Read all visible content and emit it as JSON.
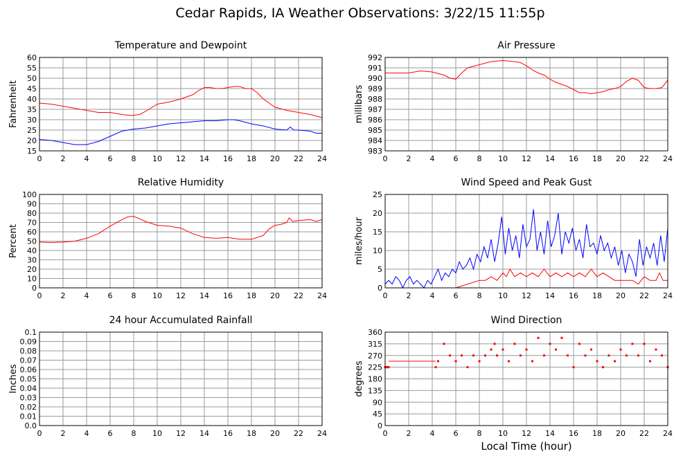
{
  "title": "Cedar Rapids, IA Weather Observations: 3/22/15 11:55p",
  "xlabel": "Local Time (hour)",
  "colors": {
    "red": "#ff0000",
    "blue": "#0000ff",
    "grid": "#999999"
  },
  "chart_data": [
    {
      "id": "temp",
      "type": "line",
      "title": "Temperature and Dewpoint",
      "ylabel": "Fahrenheit",
      "xlim": [
        0,
        24
      ],
      "ylim": [
        15,
        60
      ],
      "xticks": [
        0,
        2,
        4,
        6,
        8,
        10,
        12,
        14,
        16,
        18,
        20,
        22,
        24
      ],
      "yticks": [
        15,
        20,
        25,
        30,
        35,
        40,
        45,
        50,
        55,
        60
      ],
      "series": [
        {
          "color": "#ff0000",
          "x": [
            0,
            1,
            2,
            3,
            4,
            5,
            6,
            7,
            7.8,
            8.5,
            9,
            10,
            11,
            12,
            13,
            13.5,
            14,
            14.5,
            15,
            15.5,
            16,
            16.5,
            17,
            17.5,
            18,
            18.5,
            19,
            19.5,
            20,
            21,
            22,
            23,
            24
          ],
          "y": [
            38,
            37.5,
            36.5,
            35.5,
            34.5,
            33.5,
            33.5,
            32.5,
            32,
            32.5,
            34,
            37.5,
            38.5,
            40,
            42,
            44,
            45.5,
            45.5,
            45,
            45,
            45.5,
            46,
            46,
            45,
            45,
            43,
            40,
            38,
            36,
            34.5,
            33.5,
            32.5,
            31
          ]
        },
        {
          "color": "#0000ff",
          "x": [
            0,
            1,
            2,
            3,
            4,
            5,
            6,
            7,
            8,
            9,
            10,
            11,
            12,
            13,
            14,
            15,
            16,
            16.5,
            17,
            18,
            19,
            20,
            21,
            21.3,
            21.6,
            22,
            23,
            23.5,
            24
          ],
          "y": [
            20.5,
            20,
            19,
            18,
            18,
            19.5,
            22,
            24.5,
            25.5,
            26,
            27,
            28,
            28.5,
            29,
            29.5,
            29.5,
            30,
            30,
            29.5,
            28,
            27,
            25.5,
            25,
            26.5,
            25,
            25,
            24.5,
            23.5,
            23.5
          ]
        }
      ]
    },
    {
      "id": "pres",
      "type": "line",
      "title": "Air Pressure",
      "ylabel": "millibars",
      "xlim": [
        0,
        24
      ],
      "ylim": [
        983,
        992
      ],
      "xticks": [
        0,
        2,
        4,
        6,
        8,
        10,
        12,
        14,
        16,
        18,
        20,
        22,
        24
      ],
      "yticks": [
        983,
        984,
        985,
        986,
        987,
        988,
        989,
        990,
        991,
        992
      ],
      "series": [
        {
          "color": "#ff0000",
          "x": [
            0,
            1,
            2,
            3,
            4,
            5,
            5.5,
            6,
            6.5,
            7,
            8,
            9,
            10,
            11,
            11.5,
            12,
            12.5,
            13,
            13.5,
            14,
            14.5,
            15,
            15.5,
            16,
            16.5,
            17,
            17.5,
            18,
            18.5,
            19,
            19.5,
            20,
            20.5,
            21,
            21.5,
            22,
            22.5,
            23,
            23.5,
            24
          ],
          "y": [
            990.5,
            990.5,
            990.5,
            990.7,
            990.6,
            990.3,
            990,
            989.9,
            990.5,
            991,
            991.3,
            991.6,
            991.7,
            991.6,
            991.5,
            991.2,
            990.8,
            990.5,
            990.3,
            989.9,
            989.6,
            989.4,
            989.2,
            988.9,
            988.6,
            988.6,
            988.5,
            988.6,
            988.7,
            988.9,
            989,
            989.2,
            989.7,
            990,
            989.8,
            989.1,
            989,
            989,
            989.1,
            989.8
          ]
        }
      ]
    },
    {
      "id": "rh",
      "type": "line",
      "title": "Relative Humidity",
      "ylabel": "Percent",
      "xlim": [
        0,
        24
      ],
      "ylim": [
        0,
        100
      ],
      "xticks": [
        0,
        2,
        4,
        6,
        8,
        10,
        12,
        14,
        16,
        18,
        20,
        22,
        24
      ],
      "yticks": [
        0,
        10,
        20,
        30,
        40,
        50,
        60,
        70,
        80,
        90,
        100
      ],
      "series": [
        {
          "color": "#ff0000",
          "x": [
            0,
            1,
            2,
            3,
            4,
            5,
            6,
            7,
            7.5,
            8,
            8.5,
            9,
            10,
            11,
            12,
            13,
            14,
            15,
            16,
            17,
            18,
            19,
            19.5,
            20,
            20.5,
            21,
            21.2,
            21.5,
            22,
            23,
            23.5,
            24
          ],
          "y": [
            49,
            48.5,
            49,
            50,
            53,
            58,
            66,
            73,
            76,
            76.5,
            74,
            71,
            67,
            66,
            64,
            58,
            54,
            53,
            54,
            52,
            52,
            56,
            63,
            67,
            68,
            70,
            75,
            71,
            72,
            73,
            71,
            73
          ]
        }
      ]
    },
    {
      "id": "wind",
      "type": "line",
      "title": "Wind Speed and Peak Gust",
      "ylabel": "miles/hour",
      "xlim": [
        0,
        24
      ],
      "ylim": [
        0,
        25
      ],
      "xticks": [
        0,
        2,
        4,
        6,
        8,
        10,
        12,
        14,
        16,
        18,
        20,
        22,
        24
      ],
      "yticks": [
        0,
        5,
        10,
        15,
        20,
        25
      ],
      "series": [
        {
          "color": "#0000ff",
          "x": [
            0,
            0.3,
            0.6,
            0.9,
            1.2,
            1.5,
            1.8,
            2.1,
            2.4,
            2.7,
            3,
            3.3,
            3.6,
            3.9,
            4.2,
            4.5,
            4.8,
            5.1,
            5.4,
            5.7,
            6,
            6.3,
            6.6,
            6.9,
            7.2,
            7.5,
            7.8,
            8.1,
            8.4,
            8.7,
            9,
            9.3,
            9.6,
            9.9,
            10.2,
            10.5,
            10.8,
            11.1,
            11.4,
            11.7,
            12,
            12.3,
            12.6,
            12.9,
            13.2,
            13.5,
            13.8,
            14.1,
            14.4,
            14.7,
            15,
            15.3,
            15.6,
            15.9,
            16.2,
            16.5,
            16.8,
            17.1,
            17.4,
            17.7,
            18,
            18.3,
            18.6,
            18.9,
            19.2,
            19.5,
            19.8,
            20.1,
            20.4,
            20.7,
            21,
            21.3,
            21.6,
            21.9,
            22.2,
            22.5,
            22.8,
            23.1,
            23.4,
            23.7,
            24
          ],
          "y": [
            1,
            2,
            1,
            3,
            2,
            0,
            2,
            3,
            1,
            2,
            1,
            0,
            2,
            1,
            3,
            5,
            2,
            4,
            3,
            5,
            4,
            7,
            5,
            6,
            8,
            5,
            9,
            7,
            11,
            8,
            13,
            7,
            12,
            19,
            9,
            16,
            10,
            14,
            8,
            17,
            11,
            13,
            21,
            10,
            15,
            9,
            18,
            11,
            14,
            20,
            9,
            15,
            12,
            16,
            10,
            13,
            8,
            17,
            11,
            12,
            9,
            14,
            10,
            12,
            8,
            11,
            6,
            10,
            4,
            9,
            7,
            3,
            13,
            6,
            11,
            8,
            12,
            6,
            14,
            7,
            16
          ]
        },
        {
          "color": "#ff0000",
          "x": [
            0,
            1,
            2,
            3,
            4,
            5,
            6,
            7,
            8,
            8.5,
            9,
            9.5,
            10,
            10.3,
            10.6,
            11,
            11.5,
            12,
            12.5,
            13,
            13.5,
            14,
            14.5,
            15,
            15.5,
            16,
            16.5,
            17,
            17.5,
            18,
            18.5,
            19,
            19.5,
            20,
            21,
            21.5,
            22,
            22.5,
            23,
            23.3,
            23.6,
            24
          ],
          "y": [
            0,
            0,
            0,
            0,
            0,
            0,
            0,
            1,
            2,
            2,
            3,
            2,
            4,
            3,
            5,
            3,
            4,
            3,
            4,
            3,
            5,
            3,
            4,
            3,
            4,
            3,
            4,
            3,
            5,
            3,
            4,
            3,
            2,
            2,
            2,
            1,
            3,
            2,
            2,
            4,
            2,
            2
          ]
        }
      ]
    },
    {
      "id": "rain",
      "type": "line",
      "title": "24 hour Accumulated Rainfall",
      "ylabel": "Inches",
      "xlim": [
        0,
        24
      ],
      "ylim": [
        0,
        0.1
      ],
      "xticks": [
        0,
        2,
        4,
        6,
        8,
        10,
        12,
        14,
        16,
        18,
        20,
        22,
        24
      ],
      "yticks": [
        0.0,
        0.01,
        0.02,
        0.03,
        0.04,
        0.05,
        0.06,
        0.07,
        0.08,
        0.09,
        0.1
      ],
      "ytick_labels": [
        "0.0",
        "0.01",
        "0.02",
        "0.03",
        "0.04",
        "0.05",
        "0.06",
        "0.07",
        "0.08",
        "0.09",
        "0.1"
      ],
      "series": [
        {
          "color": "#ff0000",
          "x": [
            0,
            24
          ],
          "y": [
            0,
            0
          ]
        }
      ]
    },
    {
      "id": "dir",
      "type": "scatter",
      "title": "Wind Direction",
      "ylabel": "degrees",
      "xlabel": "Local Time (hour)",
      "xlim": [
        0,
        24
      ],
      "ylim": [
        0,
        360
      ],
      "xticks": [
        0,
        2,
        4,
        6,
        8,
        10,
        12,
        14,
        16,
        18,
        20,
        22,
        24
      ],
      "yticks": [
        0,
        45,
        90,
        135,
        180,
        225,
        270,
        315,
        360
      ],
      "series": [
        {
          "color": "#ff0000",
          "x": [
            0,
            0.1,
            0.2,
            0.3,
            4.3,
            4.5,
            5,
            5.5,
            6,
            6.5,
            7,
            7.5,
            8,
            8.5,
            9,
            9.3,
            9.5,
            10,
            10.5,
            11,
            11.5,
            12,
            12.5,
            13,
            13.5,
            14,
            14.5,
            15,
            15.5,
            16,
            16.5,
            17,
            17.5,
            18,
            18.5,
            19,
            19.5,
            20,
            20.5,
            21,
            21.5,
            22,
            22.5,
            23,
            23.5,
            24
          ],
          "y": [
            225,
            225,
            225,
            225,
            225,
            248,
            315,
            270,
            248,
            270,
            225,
            270,
            248,
            270,
            293,
            315,
            270,
            293,
            248,
            315,
            270,
            293,
            248,
            338,
            270,
            315,
            293,
            338,
            270,
            225,
            315,
            270,
            293,
            248,
            225,
            270,
            248,
            293,
            270,
            315,
            270,
            315,
            248,
            293,
            270,
            225
          ]
        },
        {
          "color": "#ff0000",
          "line": true,
          "x": [
            0.3,
            4.3
          ],
          "y": [
            248,
            248
          ]
        }
      ]
    }
  ]
}
